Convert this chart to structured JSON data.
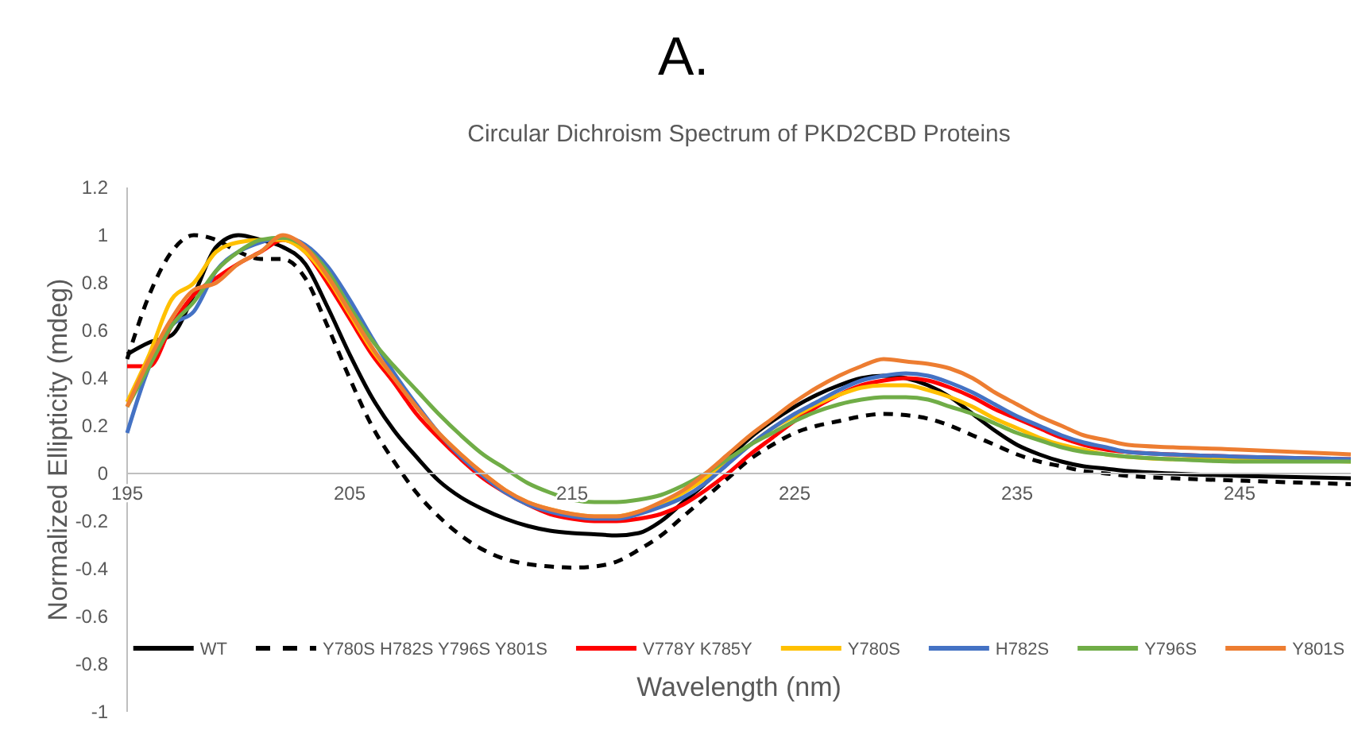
{
  "chart_data": {
    "type": "line",
    "title": "A.",
    "subtitle": "Circular Dichroism Spectrum of PKD2CBD Proteins",
    "xlabel": "Wavelength (nm)",
    "ylabel": "Normalized Ellipticity (mdeg)",
    "x": [
      195,
      196,
      197,
      198,
      199,
      200,
      201,
      202,
      203,
      204,
      205,
      206,
      207,
      208,
      209,
      210,
      211,
      212,
      213,
      214,
      215,
      216,
      217,
      218,
      219,
      220,
      221,
      222,
      223,
      224,
      225,
      226,
      227,
      228,
      229,
      230,
      231,
      232,
      233,
      234,
      235,
      236,
      237,
      238,
      239,
      240,
      242,
      245,
      250
    ],
    "xlim": [
      195,
      250
    ],
    "xticks": [
      195,
      205,
      215,
      225,
      235,
      245
    ],
    "ylim": [
      -1,
      1.2
    ],
    "yticks": [
      -1,
      -0.8,
      -0.6,
      -0.4,
      -0.2,
      0,
      0.2,
      0.4,
      0.6,
      0.8,
      1,
      1.2
    ],
    "legend": "bottom",
    "marker": "none",
    "line_style": "solid",
    "series": [
      {
        "name": "WT",
        "color": "#000000",
        "values": [
          0.5,
          0.55,
          0.58,
          0.75,
          0.95,
          1.0,
          0.98,
          0.95,
          0.88,
          0.7,
          0.5,
          0.32,
          0.18,
          0.07,
          -0.03,
          -0.1,
          -0.15,
          -0.19,
          -0.22,
          -0.24,
          -0.25,
          -0.255,
          -0.26,
          -0.25,
          -0.2,
          -0.12,
          -0.04,
          0.06,
          0.15,
          0.22,
          0.28,
          0.33,
          0.37,
          0.4,
          0.41,
          0.4,
          0.37,
          0.32,
          0.25,
          0.18,
          0.12,
          0.08,
          0.05,
          0.03,
          0.02,
          0.01,
          0.0,
          -0.01,
          -0.02
        ]
      },
      {
        "name": "Y780S H782S Y796S Y801S",
        "color": "#000000",
        "line_style": "dashed",
        "values": [
          0.48,
          0.75,
          0.93,
          1.0,
          0.98,
          0.93,
          0.9,
          0.9,
          0.82,
          0.62,
          0.4,
          0.2,
          0.05,
          -0.08,
          -0.18,
          -0.26,
          -0.32,
          -0.36,
          -0.38,
          -0.39,
          -0.395,
          -0.39,
          -0.37,
          -0.32,
          -0.26,
          -0.18,
          -0.1,
          -0.02,
          0.06,
          0.12,
          0.17,
          0.2,
          0.22,
          0.24,
          0.25,
          0.245,
          0.23,
          0.2,
          0.16,
          0.12,
          0.08,
          0.05,
          0.03,
          0.01,
          0.0,
          -0.01,
          -0.02,
          -0.03,
          -0.045
        ]
      },
      {
        "name": "V778Y K785Y",
        "color": "#ff0000",
        "values": [
          0.45,
          0.45,
          0.62,
          0.75,
          0.82,
          0.88,
          0.93,
          0.98,
          0.93,
          0.8,
          0.65,
          0.5,
          0.38,
          0.25,
          0.15,
          0.06,
          -0.02,
          -0.08,
          -0.13,
          -0.17,
          -0.19,
          -0.2,
          -0.2,
          -0.19,
          -0.17,
          -0.13,
          -0.07,
          0.0,
          0.08,
          0.15,
          0.22,
          0.28,
          0.33,
          0.37,
          0.39,
          0.4,
          0.39,
          0.36,
          0.32,
          0.27,
          0.23,
          0.19,
          0.15,
          0.12,
          0.1,
          0.09,
          0.08,
          0.07,
          0.06
        ]
      },
      {
        "name": "Y780S",
        "color": "#ffc000",
        "values": [
          0.3,
          0.5,
          0.73,
          0.8,
          0.93,
          0.97,
          0.98,
          0.98,
          0.93,
          0.82,
          0.67,
          0.52,
          0.4,
          0.28,
          0.17,
          0.08,
          0.0,
          -0.07,
          -0.12,
          -0.15,
          -0.17,
          -0.18,
          -0.18,
          -0.16,
          -0.13,
          -0.08,
          -0.02,
          0.05,
          0.12,
          0.19,
          0.24,
          0.29,
          0.33,
          0.36,
          0.37,
          0.37,
          0.35,
          0.32,
          0.28,
          0.23,
          0.19,
          0.15,
          0.12,
          0.1,
          0.08,
          0.07,
          0.06,
          0.06,
          0.05
        ]
      },
      {
        "name": "H782S",
        "color": "#4472c4",
        "values": [
          0.17,
          0.45,
          0.62,
          0.68,
          0.85,
          0.93,
          0.97,
          0.99,
          0.96,
          0.87,
          0.73,
          0.57,
          0.42,
          0.29,
          0.17,
          0.07,
          -0.01,
          -0.08,
          -0.13,
          -0.16,
          -0.18,
          -0.19,
          -0.19,
          -0.17,
          -0.14,
          -0.1,
          -0.04,
          0.04,
          0.12,
          0.19,
          0.25,
          0.3,
          0.35,
          0.39,
          0.41,
          0.42,
          0.41,
          0.38,
          0.34,
          0.29,
          0.24,
          0.2,
          0.16,
          0.13,
          0.11,
          0.09,
          0.08,
          0.07,
          0.06
        ]
      },
      {
        "name": "Y796S",
        "color": "#70ad47",
        "values": [
          0.28,
          0.45,
          0.62,
          0.72,
          0.85,
          0.93,
          0.98,
          0.99,
          0.95,
          0.85,
          0.7,
          0.56,
          0.45,
          0.35,
          0.25,
          0.16,
          0.08,
          0.02,
          -0.04,
          -0.08,
          -0.11,
          -0.12,
          -0.12,
          -0.11,
          -0.09,
          -0.05,
          0.0,
          0.06,
          0.12,
          0.17,
          0.22,
          0.26,
          0.29,
          0.31,
          0.32,
          0.32,
          0.31,
          0.28,
          0.25,
          0.21,
          0.17,
          0.14,
          0.11,
          0.09,
          0.08,
          0.07,
          0.06,
          0.05,
          0.05
        ]
      },
      {
        "name": "Y801S",
        "color": "#ed7d31",
        "values": [
          0.28,
          0.48,
          0.65,
          0.77,
          0.8,
          0.88,
          0.93,
          1.0,
          0.95,
          0.83,
          0.68,
          0.53,
          0.4,
          0.28,
          0.17,
          0.08,
          0.0,
          -0.07,
          -0.12,
          -0.15,
          -0.17,
          -0.18,
          -0.18,
          -0.16,
          -0.12,
          -0.07,
          0.0,
          0.08,
          0.16,
          0.23,
          0.3,
          0.36,
          0.41,
          0.45,
          0.48,
          0.47,
          0.46,
          0.44,
          0.4,
          0.34,
          0.29,
          0.24,
          0.2,
          0.16,
          0.14,
          0.12,
          0.11,
          0.1,
          0.08
        ]
      }
    ]
  }
}
